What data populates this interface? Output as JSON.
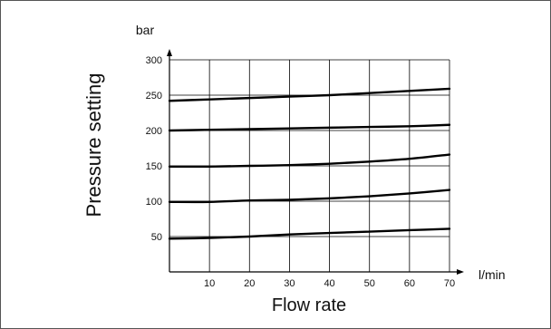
{
  "chart_data": {
    "type": "line",
    "xlabel": "Flow rate",
    "ylabel": "Pressure setting",
    "x_unit": "l/min",
    "y_unit": "bar",
    "xlim": [
      0,
      70
    ],
    "ylim": [
      0,
      300
    ],
    "x_ticks": [
      "10",
      "20",
      "30",
      "40",
      "50",
      "60",
      "70"
    ],
    "y_ticks": [
      "50",
      "100",
      "150",
      "200",
      "250",
      "300"
    ],
    "grid": true,
    "series": [
      {
        "x": [
          0,
          10,
          20,
          30,
          40,
          50,
          60,
          70
        ],
        "y": [
          242,
          244,
          246,
          248,
          250,
          253,
          256,
          259
        ]
      },
      {
        "x": [
          0,
          10,
          20,
          30,
          40,
          50,
          60,
          70
        ],
        "y": [
          200,
          201,
          202,
          203,
          204,
          205,
          206,
          208
        ]
      },
      {
        "x": [
          0,
          10,
          20,
          30,
          40,
          50,
          60,
          70
        ],
        "y": [
          149,
          149,
          150,
          151,
          153,
          156,
          160,
          166
        ]
      },
      {
        "x": [
          0,
          10,
          20,
          30,
          40,
          50,
          60,
          70
        ],
        "y": [
          99,
          99,
          101,
          102,
          104,
          107,
          111,
          116
        ]
      },
      {
        "x": [
          0,
          10,
          20,
          30,
          40,
          50,
          60,
          70
        ],
        "y": [
          47,
          48,
          50,
          53,
          55,
          57,
          59,
          61
        ]
      }
    ]
  },
  "colors": {
    "line": "#000000",
    "grid": "#000000",
    "frame": "#555555"
  }
}
